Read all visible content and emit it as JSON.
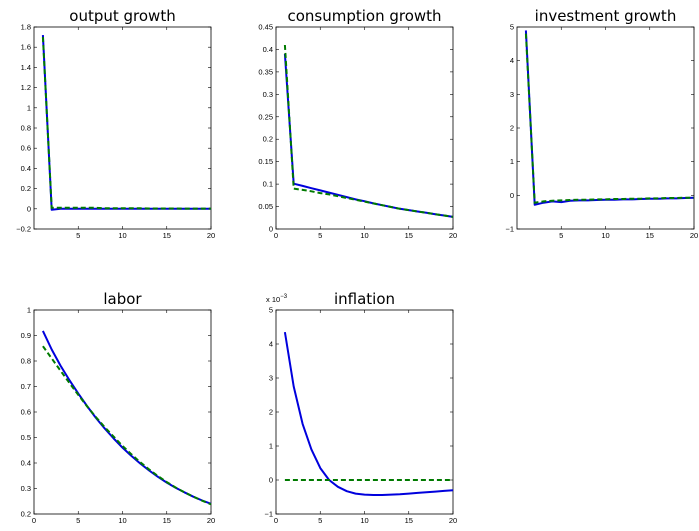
{
  "colors": {
    "solid": "#0000dd",
    "dashed": "#007a00"
  },
  "chart_data": [
    {
      "type": "line",
      "title": "output growth",
      "xlim": [
        0,
        20
      ],
      "ylim": [
        -0.2,
        1.8
      ],
      "xticks": [
        5,
        10,
        15,
        20
      ],
      "xtick_labels": [
        "5",
        "10",
        "15",
        "20"
      ],
      "yticks": [
        -0.2,
        0,
        0.2,
        0.4,
        0.6,
        0.8,
        1,
        1.2,
        1.4,
        1.6,
        1.8
      ],
      "ytick_labels": [
        "−0.2",
        "0",
        "0.2",
        "0.4",
        "0.6",
        "0.8",
        "1",
        "1.2",
        "1.4",
        "1.6",
        "1.8"
      ],
      "exponent": "",
      "grid": false,
      "series": [
        {
          "style": "solid",
          "x": [
            1,
            2,
            3,
            4,
            5,
            6,
            7,
            8,
            9,
            10,
            11,
            12,
            13,
            14,
            15,
            16,
            17,
            18,
            19,
            20
          ],
          "y": [
            1.72,
            -0.01,
            0,
            0,
            0,
            0,
            0,
            0,
            0,
            0,
            0,
            0,
            0,
            0,
            0,
            0,
            0,
            0,
            0,
            0
          ]
        },
        {
          "style": "dashed",
          "x": [
            1,
            2,
            3,
            4,
            5,
            6,
            7,
            8,
            9,
            10,
            11,
            12,
            13,
            14,
            15,
            16,
            17,
            18,
            19,
            20
          ],
          "y": [
            1.7,
            0.01,
            0.01,
            0.01,
            0.01,
            0.01,
            0.01,
            0.005,
            0.005,
            0.005,
            0.005,
            0.005,
            0.003,
            0.003,
            0.003,
            0.003,
            0.002,
            0.002,
            0.002,
            0.002
          ]
        }
      ]
    },
    {
      "type": "line",
      "title": "consumption growth",
      "xlim": [
        0,
        20
      ],
      "ylim": [
        0,
        0.45
      ],
      "xticks": [
        0,
        5,
        10,
        15,
        20
      ],
      "xtick_labels": [
        "0",
        "5",
        "10",
        "15",
        "20"
      ],
      "yticks": [
        0,
        0.05,
        0.1,
        0.15,
        0.2,
        0.25,
        0.3,
        0.35,
        0.4,
        0.45
      ],
      "ytick_labels": [
        "0",
        "0.05",
        "0.1",
        "0.15",
        "0.2",
        "0.25",
        "0.3",
        "0.35",
        "0.4",
        "0.45"
      ],
      "exponent": "",
      "grid": false,
      "series": [
        {
          "style": "solid",
          "x": [
            1,
            2,
            3,
            4,
            5,
            6,
            7,
            8,
            9,
            10,
            11,
            12,
            13,
            14,
            15,
            16,
            17,
            18,
            19,
            20
          ],
          "y": [
            0.39,
            0.101,
            0.096,
            0.091,
            0.086,
            0.081,
            0.076,
            0.071,
            0.066,
            0.062,
            0.057,
            0.053,
            0.049,
            0.045,
            0.042,
            0.039,
            0.036,
            0.033,
            0.03,
            0.027
          ]
        },
        {
          "style": "dashed",
          "x": [
            1,
            2,
            3,
            4,
            5,
            6,
            7,
            8,
            9,
            10,
            11,
            12,
            13,
            14,
            15,
            16,
            17,
            18,
            19,
            20
          ],
          "y": [
            0.41,
            0.09,
            0.087,
            0.084,
            0.08,
            0.077,
            0.073,
            0.069,
            0.065,
            0.061,
            0.057,
            0.053,
            0.049,
            0.045,
            0.042,
            0.039,
            0.036,
            0.033,
            0.03,
            0.027
          ]
        }
      ]
    },
    {
      "type": "line",
      "title": "investment growth",
      "xlim": [
        0,
        20
      ],
      "ylim": [
        -1,
        5
      ],
      "xticks": [
        5,
        10,
        15,
        20
      ],
      "xtick_labels": [
        "5",
        "10",
        "15",
        "20"
      ],
      "yticks": [
        -1,
        0,
        1,
        2,
        3,
        4,
        5
      ],
      "ytick_labels": [
        "−1",
        "0",
        "1",
        "2",
        "3",
        "4",
        "5"
      ],
      "exponent": "",
      "grid": false,
      "series": [
        {
          "style": "solid",
          "x": [
            1,
            2,
            3,
            4,
            5,
            6,
            7,
            8,
            9,
            10,
            11,
            12,
            13,
            14,
            15,
            16,
            17,
            18,
            19,
            20
          ],
          "y": [
            4.9,
            -0.28,
            -0.22,
            -0.18,
            -0.2,
            -0.16,
            -0.15,
            -0.15,
            -0.14,
            -0.13,
            -0.13,
            -0.12,
            -0.12,
            -0.11,
            -0.1,
            -0.1,
            -0.09,
            -0.09,
            -0.08,
            -0.07
          ]
        },
        {
          "style": "dashed",
          "x": [
            1,
            2,
            3,
            4,
            5,
            6,
            7,
            8,
            9,
            10,
            11,
            12,
            13,
            14,
            15,
            16,
            17,
            18,
            19,
            20
          ],
          "y": [
            4.8,
            -0.22,
            -0.18,
            -0.16,
            -0.15,
            -0.14,
            -0.13,
            -0.13,
            -0.12,
            -0.12,
            -0.11,
            -0.11,
            -0.1,
            -0.1,
            -0.09,
            -0.09,
            -0.08,
            -0.08,
            -0.07,
            -0.07
          ]
        }
      ]
    },
    {
      "type": "line",
      "title": "labor",
      "xlim": [
        0,
        20
      ],
      "ylim": [
        0.2,
        1
      ],
      "xticks": [
        0,
        5,
        10,
        15,
        20
      ],
      "xtick_labels": [
        "0",
        "5",
        "10",
        "15",
        "20"
      ],
      "yticks": [
        0.2,
        0.3,
        0.4,
        0.5,
        0.6,
        0.7,
        0.8,
        0.9,
        1
      ],
      "ytick_labels": [
        "0.2",
        "0.3",
        "0.4",
        "0.5",
        "0.6",
        "0.7",
        "0.8",
        "0.9",
        "1"
      ],
      "exponent": "",
      "grid": false,
      "series": [
        {
          "style": "solid",
          "x": [
            1,
            2,
            3,
            4,
            5,
            6,
            7,
            8,
            9,
            10,
            11,
            12,
            13,
            14,
            15,
            16,
            17,
            18,
            19,
            20
          ],
          "y": [
            0.918,
            0.845,
            0.782,
            0.725,
            0.672,
            0.623,
            0.577,
            0.535,
            0.496,
            0.46,
            0.428,
            0.398,
            0.371,
            0.346,
            0.323,
            0.303,
            0.285,
            0.268,
            0.253,
            0.24
          ]
        },
        {
          "style": "dashed",
          "x": [
            1,
            2,
            3,
            4,
            5,
            6,
            7,
            8,
            9,
            10,
            11,
            12,
            13,
            14,
            15,
            16,
            17,
            18,
            19,
            20
          ],
          "y": [
            0.858,
            0.81,
            0.762,
            0.714,
            0.667,
            0.622,
            0.58,
            0.54,
            0.503,
            0.467,
            0.434,
            0.403,
            0.375,
            0.349,
            0.325,
            0.304,
            0.285,
            0.268,
            0.252,
            0.238
          ]
        }
      ]
    },
    {
      "type": "line",
      "title": "inflation",
      "xlim": [
        0,
        20
      ],
      "ylim": [
        -1,
        5
      ],
      "xticks": [
        0,
        5,
        10,
        15,
        20
      ],
      "xtick_labels": [
        "0",
        "5",
        "10",
        "15",
        "20"
      ],
      "yticks": [
        -1,
        0,
        1,
        2,
        3,
        4,
        5
      ],
      "ytick_labels": [
        "−1",
        "0",
        "1",
        "2",
        "3",
        "4",
        "5"
      ],
      "exponent": "x 10",
      "exponent_power": "−3",
      "grid": false,
      "series": [
        {
          "style": "solid",
          "x": [
            1,
            2,
            3,
            4,
            5,
            6,
            7,
            8,
            9,
            10,
            11,
            12,
            13,
            14,
            15,
            16,
            17,
            18,
            19,
            20
          ],
          "y": [
            4.35,
            2.75,
            1.65,
            0.9,
            0.35,
            0.0,
            -0.2,
            -0.33,
            -0.4,
            -0.43,
            -0.44,
            -0.44,
            -0.43,
            -0.42,
            -0.4,
            -0.38,
            -0.36,
            -0.34,
            -0.32,
            -0.3
          ]
        },
        {
          "style": "dashed",
          "x": [
            1,
            2,
            3,
            4,
            5,
            6,
            7,
            8,
            9,
            10,
            11,
            12,
            13,
            14,
            15,
            16,
            17,
            18,
            19,
            20
          ],
          "y": [
            0,
            0,
            0,
            0,
            0,
            0,
            0,
            0,
            0,
            0,
            0,
            0,
            0,
            0,
            0,
            0,
            0,
            0,
            0,
            0
          ]
        }
      ]
    }
  ]
}
